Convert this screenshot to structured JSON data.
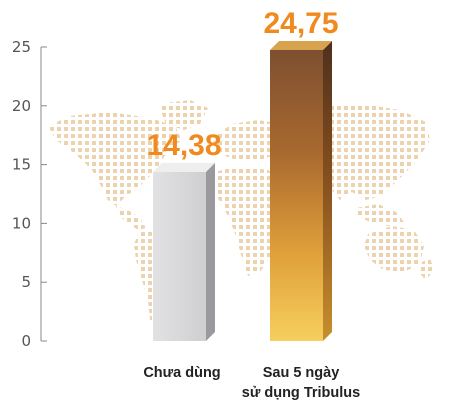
{
  "chart_data": {
    "type": "bar",
    "title": "",
    "xlabel": "",
    "ylabel": "",
    "ylim": [
      0,
      25
    ],
    "yticks": [
      0,
      5,
      10,
      15,
      20,
      25
    ],
    "grid": false,
    "categories": [
      {
        "lines": [
          "Chưa dùng"
        ]
      },
      {
        "lines": [
          "Sau 5 ngày",
          "sử dụng Tribulus"
        ]
      }
    ],
    "values": [
      14.38,
      24.75
    ],
    "data_labels": [
      "14,38",
      "24,75"
    ],
    "colors": {
      "bar_1": "#d6d6d8",
      "bar_2": "#c8873c",
      "data_label": "#f0891e",
      "axis": "#888888",
      "map_dots": "#ecd2ad"
    }
  }
}
